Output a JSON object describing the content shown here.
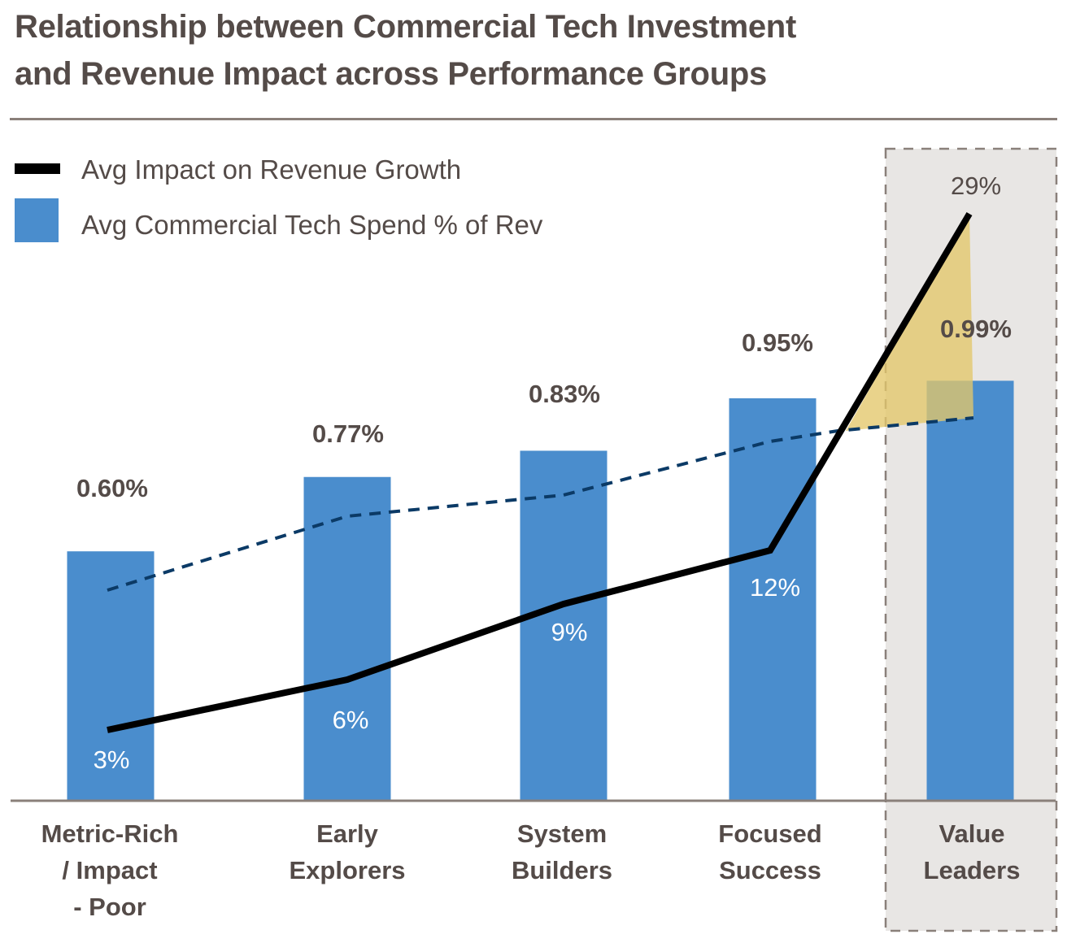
{
  "chart_data": {
    "type": "bar",
    "title_lines": [
      "Relationship between Commercial Tech Investment",
      "and Revenue Impact across Performance Groups"
    ],
    "categories": [
      [
        "Metric-Rich",
        "/ Impact",
        "- Poor"
      ],
      [
        "Early",
        "Explorers"
      ],
      [
        "System",
        "Builders"
      ],
      [
        "Focused",
        "Success"
      ],
      [
        "Value",
        "Leaders"
      ]
    ],
    "series": [
      {
        "name": "Avg Commercial Tech Spend % of Rev",
        "kind": "bar",
        "color": "#4a8dcd",
        "values": [
          0.6,
          0.77,
          0.83,
          0.95,
          0.99
        ],
        "labels": [
          "0.60%",
          "0.77%",
          "0.83%",
          "0.95%",
          "0.99%"
        ]
      },
      {
        "name": "Avg Impact on Revenue Growth",
        "kind": "line",
        "color": "#000000",
        "values": [
          3,
          6,
          9,
          12,
          29
        ],
        "labels": [
          "3%",
          "6%",
          "9%",
          "12%",
          "29%"
        ]
      }
    ],
    "trend_line": {
      "style": "dashed",
      "color": "#0b3a66",
      "values": [
        0.6,
        0.77,
        0.83,
        0.95,
        0.99
      ]
    },
    "highlight": {
      "category_index": 4,
      "fill": "#e8e6e4",
      "wedge_color": "#e3c66a"
    },
    "legend": {
      "position": "top-left"
    },
    "xlabel": "",
    "ylabel": "",
    "grid": false
  },
  "legend": {
    "line_label": "Avg Impact on Revenue Growth",
    "bar_label": "Avg Commercial Tech Spend % of Rev"
  }
}
